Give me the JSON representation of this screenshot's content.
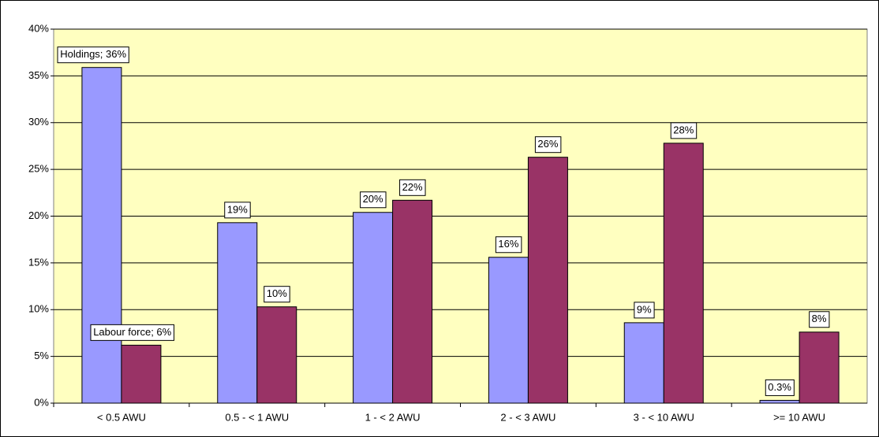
{
  "chart_data": {
    "type": "bar",
    "categories": [
      "< 0.5 AWU",
      "0.5 - < 1 AWU",
      "1 - < 2 AWU",
      "2 - < 3 AWU",
      "3 - < 10 AWU",
      ">= 10 AWU"
    ],
    "series": [
      {
        "color": "#9999ff",
        "values": [
          35.9,
          19.3,
          20.4,
          15.6,
          8.6,
          0.3
        ],
        "value_labels": [
          "Holdings; 36%",
          "19%",
          "20%",
          "16%",
          "9%",
          "0.3%"
        ]
      },
      {
        "color": "#993366",
        "values": [
          6.2,
          10.3,
          21.7,
          26.3,
          27.8,
          7.6
        ],
        "value_labels": [
          "Labour force; 6%",
          "10%",
          "22%",
          "26%",
          "28%",
          "8%"
        ]
      }
    ],
    "ylim": [
      0,
      40
    ],
    "yticks": [
      {
        "value": 0,
        "label": "0%"
      },
      {
        "value": 5,
        "label": "5%"
      },
      {
        "value": 10,
        "label": "10%"
      },
      {
        "value": 15,
        "label": "15%"
      },
      {
        "value": 20,
        "label": "20%"
      },
      {
        "value": 25,
        "label": "25%"
      },
      {
        "value": 30,
        "label": "30%"
      },
      {
        "value": 35,
        "label": "35%"
      },
      {
        "value": 40,
        "label": "40%"
      }
    ],
    "grid": true,
    "plot_background": "#ffffc0"
  }
}
